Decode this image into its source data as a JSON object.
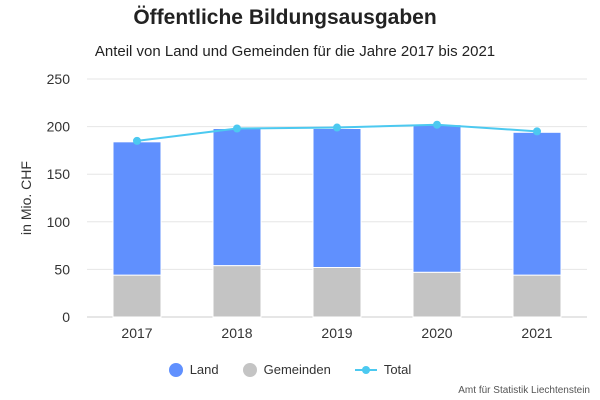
{
  "chart_data": {
    "type": "bar",
    "title": "Öffentliche Bildungsausgaben",
    "subtitle": "Anteil von Land und Gemeinden für die Jahre 2017 bis 2021",
    "ylabel": "in Mio. CHF",
    "xlabel": "",
    "ylim": [
      0,
      250
    ],
    "yticks": [
      0,
      50,
      100,
      150,
      200,
      250
    ],
    "categories": [
      "2017",
      "2018",
      "2019",
      "2020",
      "2021"
    ],
    "stacked": true,
    "grid": true,
    "legend_position": "bottom",
    "series": [
      {
        "name": "Gemeinden",
        "type": "bar",
        "color": "#c4c4c4",
        "values": [
          44,
          54,
          52,
          47,
          44
        ]
      },
      {
        "name": "Land",
        "type": "bar",
        "color": "#6090fe",
        "values": [
          140,
          144,
          146,
          155,
          150
        ]
      },
      {
        "name": "Total",
        "type": "line",
        "color": "#4cc9f0",
        "values": [
          185,
          198,
          199,
          202,
          195
        ]
      }
    ],
    "legend": [
      {
        "name": "Land",
        "color": "#6090fe",
        "shape": "circle"
      },
      {
        "name": "Gemeinden",
        "color": "#c4c4c4",
        "shape": "circle"
      },
      {
        "name": "Total",
        "color": "#4cc9f0",
        "shape": "line-marker"
      }
    ],
    "credits": "Amt für Statistik Liechtenstein"
  }
}
